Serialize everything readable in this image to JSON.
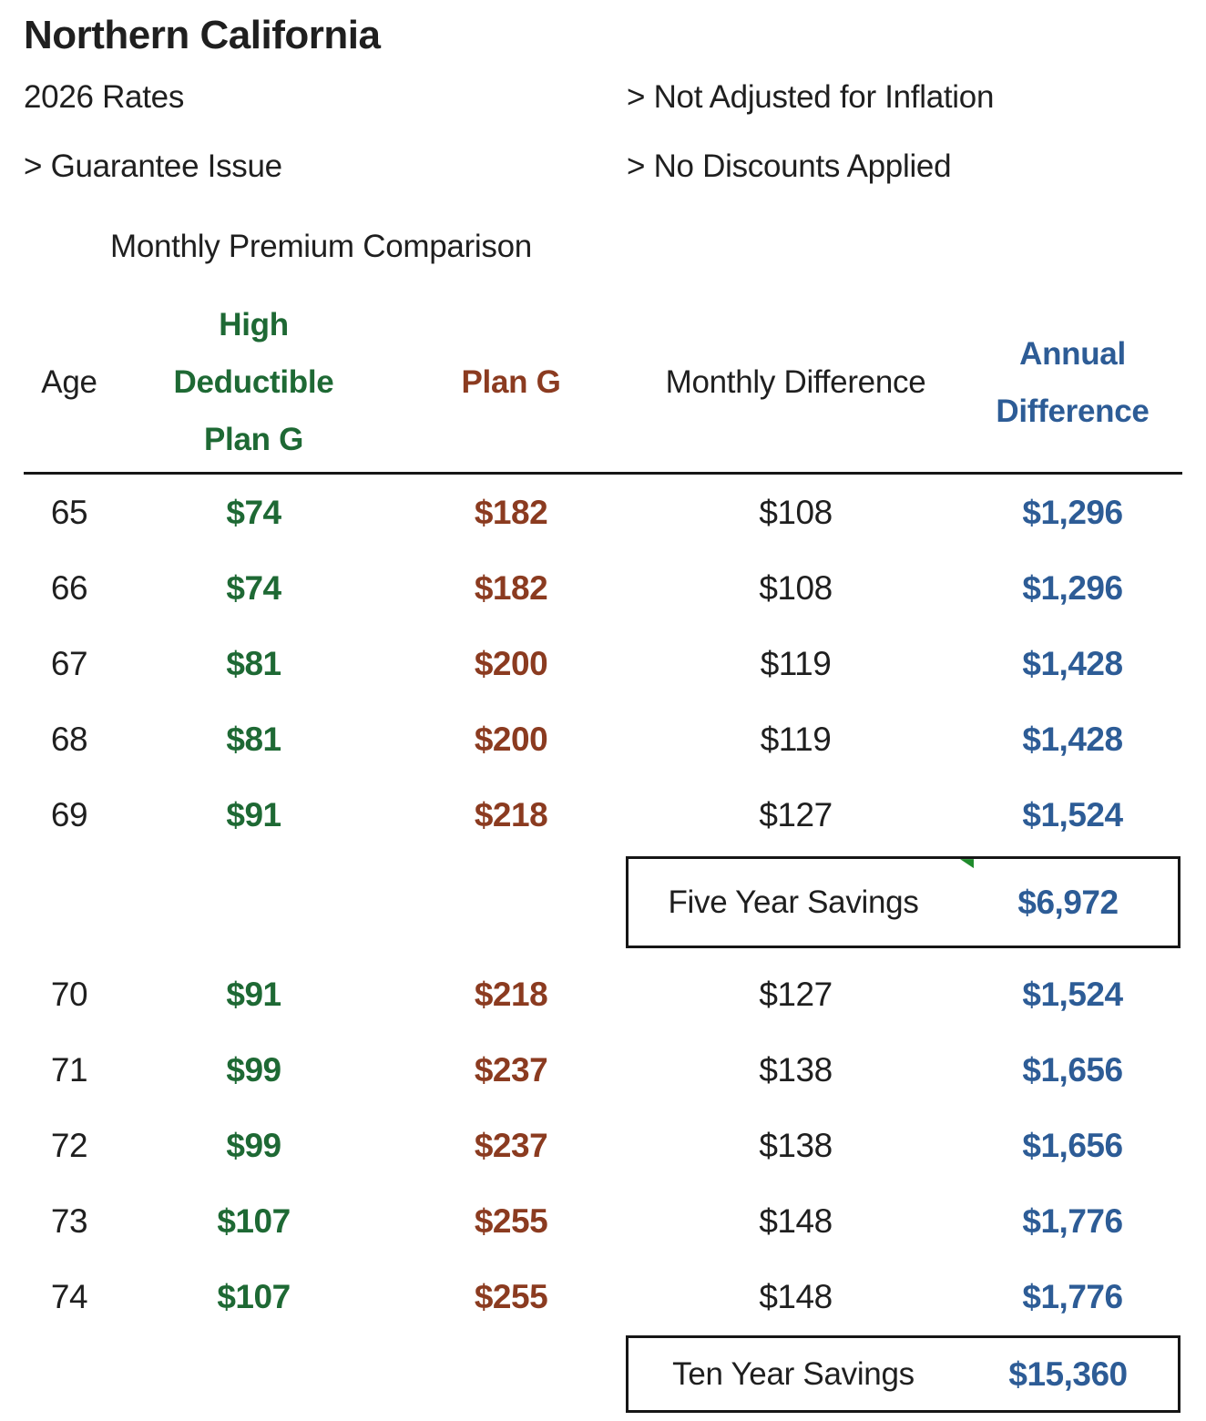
{
  "title": "Northern California",
  "meta": {
    "rates_label": "2026 Rates",
    "not_adjusted_label": "> Not Adjusted for Inflation",
    "guarantee_issue_label": "> Guarantee Issue",
    "no_discounts_label": "> No Discounts Applied"
  },
  "section_title": "Monthly Premium Comparison",
  "colors": {
    "text": "#1f1f1f",
    "high_deductible_green": "#1E6934",
    "plan_g_brown": "#8B3B20",
    "difference_blue": "#2D5C96",
    "corner_flag_green": "#1F8B2C"
  },
  "table": {
    "headers": {
      "age": "Age",
      "high_deductible_plan_g": "High\nDeductible\nPlan G",
      "plan_g": "Plan G",
      "monthly_difference": "Monthly Difference",
      "annual_difference": "Annual\nDifference"
    },
    "rows_65_69": [
      {
        "age": "65",
        "hd": "$74",
        "pg": "$182",
        "monthly": "$108",
        "annual": "$1,296"
      },
      {
        "age": "66",
        "hd": "$74",
        "pg": "$182",
        "monthly": "$108",
        "annual": "$1,296"
      },
      {
        "age": "67",
        "hd": "$81",
        "pg": "$200",
        "monthly": "$119",
        "annual": "$1,428"
      },
      {
        "age": "68",
        "hd": "$81",
        "pg": "$200",
        "monthly": "$119",
        "annual": "$1,428"
      },
      {
        "age": "69",
        "hd": "$91",
        "pg": "$218",
        "monthly": "$127",
        "annual": "$1,524"
      }
    ],
    "five_year_savings": {
      "label": "Five Year Savings",
      "value": "$6,972"
    },
    "rows_70_74": [
      {
        "age": "70",
        "hd": "$91",
        "pg": "$218",
        "monthly": "$127",
        "annual": "$1,524"
      },
      {
        "age": "71",
        "hd": "$99",
        "pg": "$237",
        "monthly": "$138",
        "annual": "$1,656"
      },
      {
        "age": "72",
        "hd": "$99",
        "pg": "$237",
        "monthly": "$138",
        "annual": "$1,656"
      },
      {
        "age": "73",
        "hd": "$107",
        "pg": "$255",
        "monthly": "$148",
        "annual": "$1,776"
      },
      {
        "age": "74",
        "hd": "$107",
        "pg": "$255",
        "monthly": "$148",
        "annual": "$1,776"
      }
    ],
    "ten_year_savings": {
      "label": "Ten Year Savings",
      "value": "$15,360"
    }
  }
}
